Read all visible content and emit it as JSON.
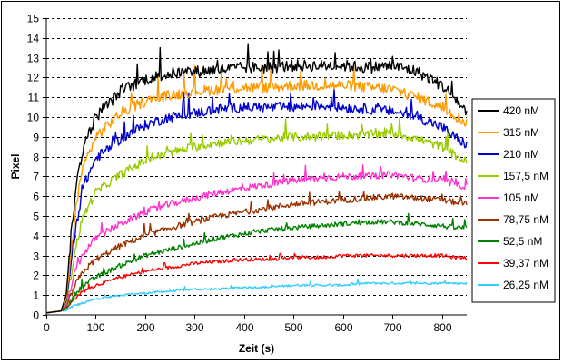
{
  "chart_data": {
    "type": "line",
    "title": "",
    "xlabel": "Zeit (s)",
    "ylabel": "Pixel",
    "xlim": [
      0,
      850
    ],
    "ylim": [
      0,
      15
    ],
    "x_ticks": [
      0,
      100,
      200,
      300,
      400,
      500,
      600,
      700,
      800
    ],
    "y_ticks": [
      0,
      1,
      2,
      3,
      4,
      5,
      6,
      7,
      8,
      9,
      10,
      11,
      12,
      13,
      14,
      15
    ],
    "grid": "horizontal-dashed",
    "legend_position": "right",
    "x": [
      0,
      30,
      40,
      50,
      60,
      75,
      100,
      150,
      200,
      250,
      300,
      350,
      400,
      450,
      500,
      550,
      600,
      650,
      700,
      750,
      800,
      825,
      850
    ],
    "series": [
      {
        "name": "420 nM",
        "color": "#000000",
        "values": [
          0.1,
          0.2,
          1.0,
          4.0,
          6.5,
          8.5,
          10.0,
          11.3,
          11.9,
          12.2,
          12.3,
          12.4,
          12.5,
          12.5,
          12.6,
          12.6,
          12.6,
          12.5,
          12.6,
          12.3,
          11.6,
          11.0,
          10.2
        ]
      },
      {
        "name": "315 nM",
        "color": "#ff9900",
        "values": [
          0.1,
          0.2,
          0.8,
          3.0,
          5.5,
          7.5,
          9.0,
          10.2,
          10.8,
          11.1,
          11.3,
          11.4,
          11.5,
          11.5,
          11.6,
          11.6,
          11.6,
          11.5,
          11.4,
          11.0,
          10.5,
          10.1,
          9.7
        ]
      },
      {
        "name": "210 nM",
        "color": "#0000cc",
        "values": [
          0.1,
          0.2,
          0.7,
          2.5,
          4.5,
          6.5,
          7.9,
          8.9,
          9.6,
          10.0,
          10.2,
          10.4,
          10.5,
          10.5,
          10.5,
          10.6,
          10.5,
          10.4,
          10.3,
          10.0,
          9.5,
          9.0,
          8.6
        ]
      },
      {
        "name": "157,5 nM",
        "color": "#99cc00",
        "values": [
          0.1,
          0.2,
          0.6,
          2.0,
          3.5,
          5.0,
          6.2,
          7.1,
          7.8,
          8.2,
          8.5,
          8.7,
          8.8,
          8.9,
          9.0,
          9.0,
          9.1,
          9.1,
          9.2,
          8.9,
          8.5,
          8.1,
          7.7
        ]
      },
      {
        "name": "105 nM",
        "color": "#ff33cc",
        "values": [
          0.1,
          0.2,
          0.5,
          1.4,
          2.3,
          3.1,
          3.9,
          4.6,
          5.2,
          5.6,
          5.9,
          6.2,
          6.4,
          6.6,
          6.8,
          6.9,
          7.0,
          7.0,
          7.1,
          6.9,
          6.8,
          6.6,
          6.5
        ]
      },
      {
        "name": "78,75 nM",
        "color": "#993300",
        "values": [
          0.1,
          0.2,
          0.4,
          1.0,
          1.6,
          2.2,
          2.8,
          3.5,
          4.0,
          4.4,
          4.7,
          5.0,
          5.2,
          5.4,
          5.6,
          5.7,
          5.8,
          5.9,
          6.0,
          5.9,
          5.8,
          5.7,
          5.6
        ]
      },
      {
        "name": "52,5 nM",
        "color": "#008000",
        "values": [
          0.1,
          0.2,
          0.3,
          0.7,
          1.1,
          1.5,
          1.9,
          2.5,
          3.0,
          3.3,
          3.6,
          3.9,
          4.1,
          4.3,
          4.4,
          4.5,
          4.6,
          4.7,
          4.7,
          4.6,
          4.5,
          4.4,
          4.4
        ]
      },
      {
        "name": "39,37 nM",
        "color": "#ff0000",
        "values": [
          0.1,
          0.2,
          0.3,
          0.6,
          0.9,
          1.2,
          1.5,
          1.9,
          2.2,
          2.4,
          2.6,
          2.7,
          2.8,
          2.8,
          2.9,
          2.9,
          3.0,
          3.0,
          3.0,
          3.0,
          3.0,
          2.9,
          2.9
        ]
      },
      {
        "name": "26,25 nM",
        "color": "#33ccff",
        "values": [
          0.1,
          0.2,
          0.2,
          0.4,
          0.5,
          0.6,
          0.8,
          1.0,
          1.1,
          1.2,
          1.3,
          1.3,
          1.4,
          1.4,
          1.5,
          1.5,
          1.5,
          1.6,
          1.6,
          1.6,
          1.6,
          1.6,
          1.6
        ]
      }
    ]
  }
}
